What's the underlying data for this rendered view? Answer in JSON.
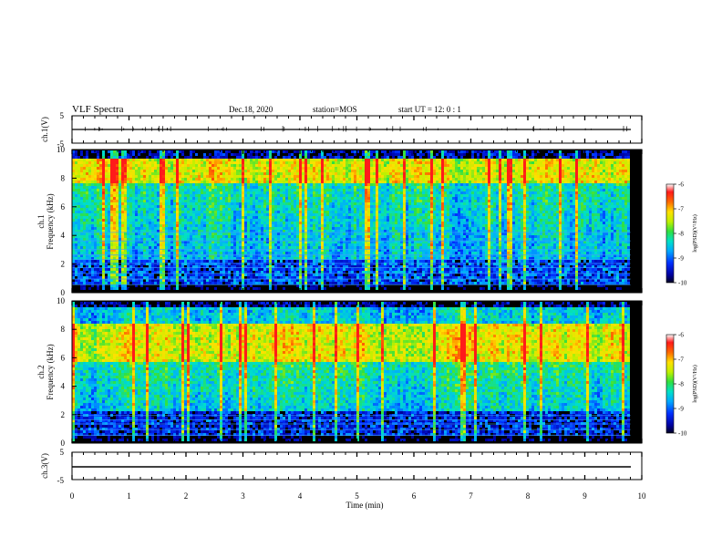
{
  "header": {
    "title": "VLF Spectra",
    "date": "Dec.18, 2020",
    "station": "station=MOS",
    "start": "start  UT =   12: 0  : 1"
  },
  "colors": {
    "waveform_line": "#000000",
    "colormap": [
      "#000000",
      "#0000a0",
      "#0020ff",
      "#00b0ff",
      "#00e0c0",
      "#40e040",
      "#c8ff00",
      "#ffff00",
      "#ff9000",
      "#ff2000",
      "#ffffff"
    ]
  },
  "chart_data": [
    {
      "type": "line",
      "panel": "ch1_waveform",
      "ylabel": "ch.1(V)",
      "ylim": [
        -5,
        5
      ],
      "yticks": [
        "5",
        "-5"
      ],
      "xlim": [
        0,
        10
      ],
      "values_note": "",
      "series": [
        {
          "x": [
            0,
            9.8
          ],
          "y": [
            0,
            0
          ]
        }
      ]
    },
    {
      "type": "heatmap",
      "panel": "ch1_spectrogram",
      "ylabel": "ch.1\nFrequency (kHz)",
      "ylabel_line1": "ch.1",
      "ylabel_line2": "Frequency (kHz)",
      "ylim": [
        0,
        10
      ],
      "yticks": [
        "0",
        "2",
        "4",
        "6",
        "8",
        "10"
      ],
      "xlim": [
        0,
        10
      ],
      "data_xmax": 9.8,
      "colorbar": {
        "label": "log(PSD)(V²/Hz)",
        "range": [
          -10,
          -6
        ],
        "ticks": [
          "-6",
          "-7",
          "-8",
          "-9",
          "-10"
        ]
      },
      "bands_khz": [
        [
          0.3,
          9.3
        ]
      ],
      "strong_band_khz": [
        7.5,
        9.0
      ]
    },
    {
      "type": "heatmap",
      "panel": "ch2_spectrogram",
      "ylabel_line1": "ch.2",
      "ylabel_line2": "Frequency (kHz)",
      "ylim": [
        0,
        10
      ],
      "yticks": [
        "0",
        "2",
        "4",
        "6",
        "8",
        "10"
      ],
      "xlim": [
        0,
        10
      ],
      "data_xmax": 9.8,
      "colorbar": {
        "label": "log(PSD)(V²/Hz)",
        "range": [
          -10,
          -6
        ],
        "ticks": [
          "-6",
          "-7",
          "-8",
          "-9",
          "-10"
        ]
      },
      "strong_band_khz": [
        6.0,
        8.0
      ]
    },
    {
      "type": "line",
      "panel": "ch3_waveform",
      "ylabel": "ch.3(V)",
      "ylim": [
        -5,
        5
      ],
      "yticks": [
        "5",
        "-5"
      ],
      "xlim": [
        0,
        10
      ],
      "series": [
        {
          "x": [
            0,
            9.8
          ],
          "y": [
            0,
            0
          ]
        }
      ]
    }
  ],
  "xaxis": {
    "label": "Time  (min)",
    "ticks": [
      "0",
      "1",
      "2",
      "3",
      "4",
      "5",
      "6",
      "7",
      "8",
      "9",
      "10"
    ]
  }
}
